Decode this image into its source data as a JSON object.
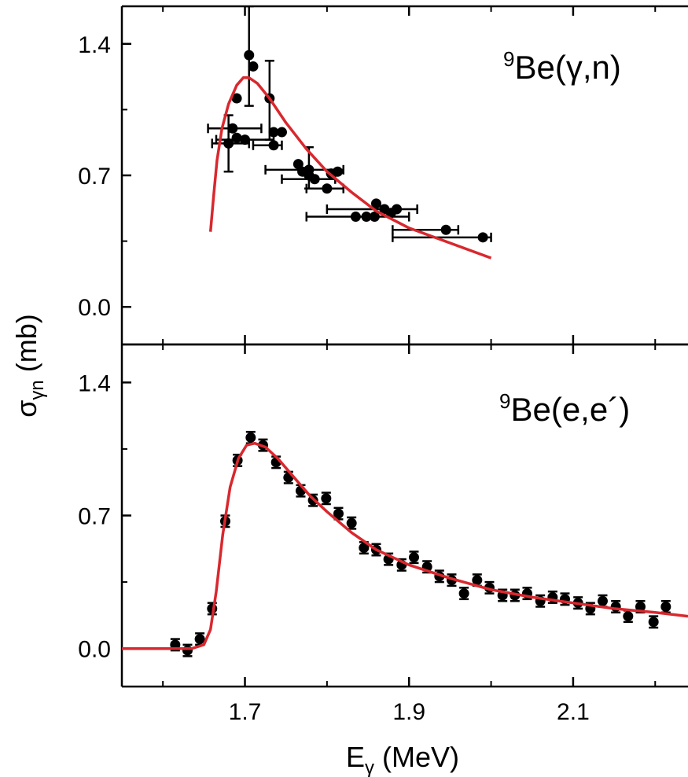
{
  "chart_data": [
    {
      "type": "scatter",
      "panel_label": {
        "sup": "9",
        "text": "Be(γ,n)"
      },
      "ylim": [
        -0.2,
        1.6
      ],
      "xlim": [
        1.55,
        2.24
      ],
      "yticks": [
        0.0,
        0.7,
        1.4
      ],
      "ytick_labels": [
        "0.0",
        "0.7",
        "1.4"
      ],
      "grid": false,
      "series": [
        {
          "kind": "points",
          "color": "#000000",
          "points": [
            {
              "x": 1.705,
              "y": 1.34,
              "yerr": [
                1.07,
                1.6
              ]
            },
            {
              "x": 1.71,
              "y": 1.28
            },
            {
              "x": 1.69,
              "y": 1.11
            },
            {
              "x": 1.73,
              "y": 1.11,
              "yerr": [
                0.89,
                1.31
              ]
            },
            {
              "x": 1.685,
              "y": 0.95,
              "xerr": [
                1.655,
                1.72
              ]
            },
            {
              "x": 1.69,
              "y": 0.9
            },
            {
              "x": 1.7,
              "y": 0.89,
              "xerr": [
                1.665,
                1.735
              ]
            },
            {
              "x": 1.68,
              "y": 0.87,
              "xerr": [
                1.66,
                1.705
              ],
              "yerr": [
                0.72,
                1.02
              ]
            },
            {
              "x": 1.735,
              "y": 0.93
            },
            {
              "x": 1.745,
              "y": 0.93
            },
            {
              "x": 1.735,
              "y": 0.86,
              "xerr": [
                1.71,
                1.745
              ]
            },
            {
              "x": 1.765,
              "y": 0.76
            },
            {
              "x": 1.77,
              "y": 0.72
            },
            {
              "x": 1.778,
              "y": 0.73,
              "xerr": [
                1.725,
                1.82
              ],
              "yerr": [
                0.63,
                0.85
              ]
            },
            {
              "x": 1.778,
              "y": 0.7
            },
            {
              "x": 1.785,
              "y": 0.68,
              "xerr": [
                1.745,
                1.81
              ]
            },
            {
              "x": 1.8,
              "y": 0.63,
              "xerr": [
                1.775,
                1.82
              ]
            },
            {
              "x": 1.805,
              "y": 0.71
            },
            {
              "x": 1.813,
              "y": 0.72
            },
            {
              "x": 1.835,
              "y": 0.48
            },
            {
              "x": 1.848,
              "y": 0.48
            },
            {
              "x": 1.86,
              "y": 0.55
            },
            {
              "x": 1.87,
              "y": 0.52,
              "xerr": [
                1.8,
                1.91
              ]
            },
            {
              "x": 1.878,
              "y": 0.5
            },
            {
              "x": 1.885,
              "y": 0.52
            },
            {
              "x": 1.858,
              "y": 0.48,
              "xerr": [
                1.775,
                1.9
              ]
            },
            {
              "x": 1.945,
              "y": 0.41,
              "xerr": [
                1.88,
                1.96
              ]
            },
            {
              "x": 1.99,
              "y": 0.37,
              "xerr": [
                1.88,
                2.0
              ]
            }
          ]
        },
        {
          "kind": "curve",
          "color": "#d8282e",
          "points": [
            {
              "x": 1.658,
              "y": 0.4
            },
            {
              "x": 1.662,
              "y": 0.6
            },
            {
              "x": 1.666,
              "y": 0.78
            },
            {
              "x": 1.672,
              "y": 0.95
            },
            {
              "x": 1.68,
              "y": 1.08
            },
            {
              "x": 1.69,
              "y": 1.18
            },
            {
              "x": 1.698,
              "y": 1.22
            },
            {
              "x": 1.705,
              "y": 1.22
            },
            {
              "x": 1.715,
              "y": 1.19
            },
            {
              "x": 1.73,
              "y": 1.11
            },
            {
              "x": 1.75,
              "y": 0.98
            },
            {
              "x": 1.775,
              "y": 0.84
            },
            {
              "x": 1.8,
              "y": 0.72
            },
            {
              "x": 1.83,
              "y": 0.61
            },
            {
              "x": 1.86,
              "y": 0.51
            },
            {
              "x": 1.9,
              "y": 0.42
            },
            {
              "x": 1.95,
              "y": 0.34
            },
            {
              "x": 2.0,
              "y": 0.26
            }
          ]
        }
      ]
    },
    {
      "type": "scatter",
      "panel_label": {
        "sup": "9",
        "text": "Be(e,e´)"
      },
      "ylim": [
        -0.2,
        1.6
      ],
      "xlim": [
        1.55,
        2.24
      ],
      "yticks": [
        0.0,
        0.7,
        1.4
      ],
      "ytick_labels": [
        "0.0",
        "0.7",
        "1.4"
      ],
      "xticks": [
        1.7,
        1.9,
        2.1
      ],
      "xtick_labels": [
        "1.7",
        "1.9",
        "2.1"
      ],
      "grid": false,
      "series": [
        {
          "kind": "points",
          "color": "#000000",
          "err": 0.03,
          "points": [
            {
              "x": 1.615,
              "y": 0.02
            },
            {
              "x": 1.63,
              "y": -0.01
            },
            {
              "x": 1.645,
              "y": 0.05
            },
            {
              "x": 1.66,
              "y": 0.21
            },
            {
              "x": 1.676,
              "y": 0.67
            },
            {
              "x": 1.691,
              "y": 0.99
            },
            {
              "x": 1.707,
              "y": 1.11
            },
            {
              "x": 1.722,
              "y": 1.07
            },
            {
              "x": 1.738,
              "y": 0.98
            },
            {
              "x": 1.753,
              "y": 0.9
            },
            {
              "x": 1.768,
              "y": 0.83
            },
            {
              "x": 1.783,
              "y": 0.78
            },
            {
              "x": 1.799,
              "y": 0.79
            },
            {
              "x": 1.814,
              "y": 0.71
            },
            {
              "x": 1.83,
              "y": 0.66
            },
            {
              "x": 1.845,
              "y": 0.53
            },
            {
              "x": 1.86,
              "y": 0.52
            },
            {
              "x": 1.875,
              "y": 0.47
            },
            {
              "x": 1.891,
              "y": 0.44
            },
            {
              "x": 1.906,
              "y": 0.48
            },
            {
              "x": 1.922,
              "y": 0.43
            },
            {
              "x": 1.937,
              "y": 0.38
            },
            {
              "x": 1.952,
              "y": 0.36
            },
            {
              "x": 1.967,
              "y": 0.29
            },
            {
              "x": 1.983,
              "y": 0.36
            },
            {
              "x": 1.998,
              "y": 0.32
            },
            {
              "x": 2.014,
              "y": 0.28
            },
            {
              "x": 2.029,
              "y": 0.28
            },
            {
              "x": 2.044,
              "y": 0.29
            },
            {
              "x": 2.06,
              "y": 0.25
            },
            {
              "x": 2.075,
              "y": 0.27
            },
            {
              "x": 2.09,
              "y": 0.26
            },
            {
              "x": 2.106,
              "y": 0.24
            },
            {
              "x": 2.121,
              "y": 0.21
            },
            {
              "x": 2.136,
              "y": 0.25
            },
            {
              "x": 2.152,
              "y": 0.22
            },
            {
              "x": 2.167,
              "y": 0.17
            },
            {
              "x": 2.182,
              "y": 0.22
            },
            {
              "x": 2.198,
              "y": 0.14
            },
            {
              "x": 2.213,
              "y": 0.22
            }
          ]
        },
        {
          "kind": "curve",
          "color": "#d8282e",
          "points": [
            {
              "x": 1.55,
              "y": 0.0
            },
            {
              "x": 1.6,
              "y": 0.0
            },
            {
              "x": 1.635,
              "y": 0.0
            },
            {
              "x": 1.65,
              "y": 0.02
            },
            {
              "x": 1.658,
              "y": 0.1
            },
            {
              "x": 1.665,
              "y": 0.3
            },
            {
              "x": 1.673,
              "y": 0.6
            },
            {
              "x": 1.682,
              "y": 0.85
            },
            {
              "x": 1.692,
              "y": 1.0
            },
            {
              "x": 1.702,
              "y": 1.07
            },
            {
              "x": 1.712,
              "y": 1.08
            },
            {
              "x": 1.725,
              "y": 1.06
            },
            {
              "x": 1.74,
              "y": 1.0
            },
            {
              "x": 1.76,
              "y": 0.9
            },
            {
              "x": 1.78,
              "y": 0.8
            },
            {
              "x": 1.8,
              "y": 0.72
            },
            {
              "x": 1.83,
              "y": 0.61
            },
            {
              "x": 1.86,
              "y": 0.52
            },
            {
              "x": 1.9,
              "y": 0.44
            },
            {
              "x": 1.95,
              "y": 0.37
            },
            {
              "x": 2.0,
              "y": 0.31
            },
            {
              "x": 2.05,
              "y": 0.27
            },
            {
              "x": 2.1,
              "y": 0.24
            },
            {
              "x": 2.15,
              "y": 0.21
            },
            {
              "x": 2.2,
              "y": 0.19
            },
            {
              "x": 2.24,
              "y": 0.17
            }
          ]
        }
      ]
    }
  ],
  "axes": {
    "ylabel": {
      "main": "σ",
      "sub": "γn",
      "rest": " (mb)"
    },
    "xlabel": {
      "main": "E",
      "sub": "γ",
      "rest": " (MeV)"
    }
  }
}
